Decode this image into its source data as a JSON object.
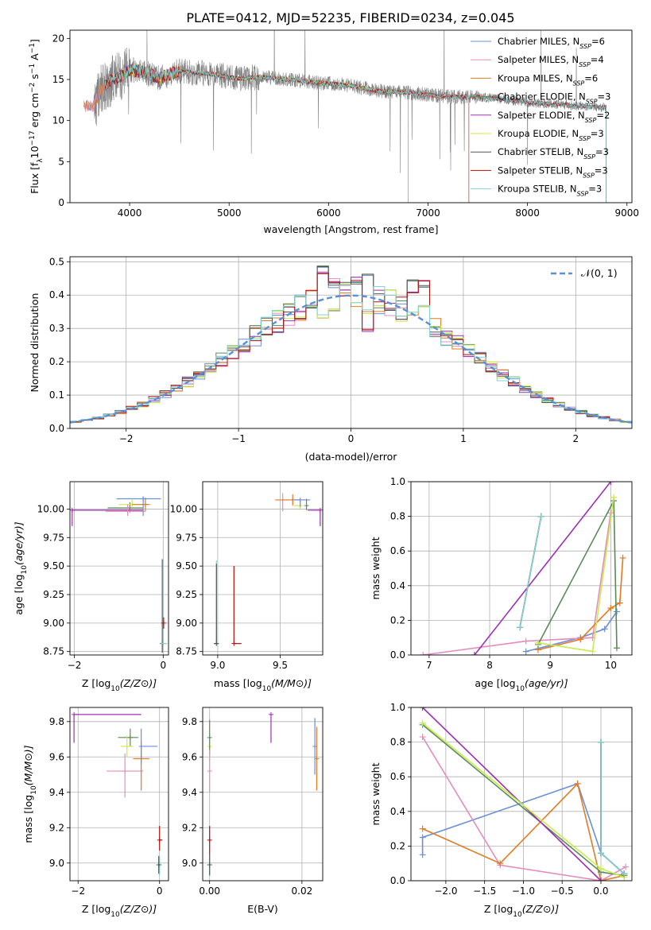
{
  "figure": {
    "title": "PLATE=0412, MJD=52235, FIBERID=0234, z=0.045"
  },
  "colors": {
    "chabrier_miles": "#6a8fd8",
    "salpeter_miles": "#e58cbf",
    "kroupa_miles": "#e07b22",
    "chabrier_elodie": "#5a8a5a",
    "salpeter_elodie": "#9b30b0",
    "kroupa_elodie": "#c8ec4a",
    "chabrier_stelib": "#555555",
    "salpeter_stelib": "#b01010",
    "kroupa_stelib": "#7fd6d6",
    "data": "#808080",
    "gauss": "#5b8fd6"
  },
  "chart_data": [
    {
      "id": "spectrum",
      "type": "line",
      "title": "PLATE=0412, MJD=52235, FIBERID=0234, z=0.045",
      "xlabel": "wavelength [Angstrom, rest frame]",
      "ylabel": "Flux [f_λ 10^-17 erg cm^-2 s^-1 A^-1]",
      "xlim": [
        3400,
        9050
      ],
      "ylim": [
        0,
        21
      ],
      "xticks": [
        "4000",
        "5000",
        "6000",
        "7000",
        "8000",
        "9000"
      ],
      "yticks": [
        "0",
        "5",
        "10",
        "15",
        "20"
      ],
      "legend_position": "top-right",
      "legend": [
        {
          "model": "Chabrier MILES",
          "n": "N",
          "sub": "SSP",
          "val": "=6"
        },
        {
          "model": "Salpeter MILES",
          "n": "N",
          "sub": "SSP",
          "val": "=4"
        },
        {
          "model": "Kroupa MILES",
          "n": "N",
          "sub": "SSP",
          "val": "=6"
        },
        {
          "model": "Chabrier ELODIE",
          "n": "N",
          "sub": "SSP",
          "val": "=3"
        },
        {
          "model": "Salpeter ELODIE",
          "n": "N",
          "sub": "SSP",
          "val": "=2"
        },
        {
          "model": "Kroupa ELODIE",
          "n": "N",
          "sub": "SSP",
          "val": "=3"
        },
        {
          "model": "Chabrier STELIB",
          "n": "N",
          "sub": "SSP",
          "val": "=3"
        },
        {
          "model": "Salpeter STELIB",
          "n": "N",
          "sub": "SSP",
          "val": "=3"
        },
        {
          "model": "Kroupa STELIB",
          "n": "N",
          "sub": "SSP",
          "val": "=3"
        }
      ],
      "continuum_knots": [
        [
          3640,
          11.8
        ],
        [
          3700,
          13.5
        ],
        [
          3800,
          14.8
        ],
        [
          3900,
          15.3
        ],
        [
          4000,
          16.2
        ],
        [
          4100,
          16.0
        ],
        [
          4300,
          15.2
        ],
        [
          4500,
          16.0
        ],
        [
          4800,
          15.7
        ],
        [
          5100,
          15.1
        ],
        [
          5300,
          15.3
        ],
        [
          5600,
          15.0
        ],
        [
          5900,
          14.6
        ],
        [
          6200,
          14.3
        ],
        [
          6500,
          13.6
        ],
        [
          6800,
          13.4
        ],
        [
          7200,
          12.9
        ],
        [
          7500,
          12.9
        ],
        [
          7800,
          12.5
        ],
        [
          8100,
          12.1
        ],
        [
          8400,
          11.9
        ],
        [
          8790,
          11.6
        ]
      ],
      "models": {
        "miles": [
          3540,
          7410
        ],
        "elodie": [
          3890,
          6800
        ],
        "stelib": [
          3750,
          8790
        ]
      }
    },
    {
      "id": "residuals",
      "type": "histogram",
      "xlabel": "(data-model)/error",
      "ylabel": "Normed distribution",
      "xlim": [
        -2.5,
        2.5
      ],
      "ylim": [
        0,
        0.515
      ],
      "xticks": [
        "−2",
        "−1",
        "0",
        "1",
        "2"
      ],
      "yticks": [
        "0.0",
        "0.1",
        "0.2",
        "0.3",
        "0.4",
        "0.5"
      ],
      "legend_position": "top-right",
      "legend": {
        "gauss": "𝒩(0, 1)"
      },
      "bin_width": 0.1,
      "spikes": {
        "-0.25": [
          0.49,
          0.47,
          0.34
        ],
        "-0.15": [
          0.43,
          0.44,
          0.36
        ],
        "0.05": [
          0.44,
          0.45,
          0.37
        ],
        "0.15": [
          0.46,
          0.3,
          0.35
        ],
        "0.55": [
          0.45,
          0.41,
          0.35
        ],
        "0.65": [
          0.43,
          0.45,
          0.37
        ]
      }
    },
    {
      "id": "age_vs_Z",
      "type": "errorbar",
      "xlabel": "Z [log10(Z/Z⊙)]",
      "ylabel": "age  [log10(age/yr)]",
      "xlim": [
        -2.1,
        0.12
      ],
      "ylim": [
        8.72,
        10.24
      ],
      "xticks": [
        "−2",
        "0"
      ],
      "yticks": [
        "8.75",
        "9.00",
        "9.25",
        "9.50",
        "9.75",
        "10.00",
        "10.25"
      ],
      "points": [
        {
          "model": "salpeter_elodie",
          "x": -2.05,
          "y": 9.99,
          "xerr": [
            0.0,
            1.6
          ],
          "yerr": [
            0.14,
            0.0
          ]
        },
        {
          "model": "chabrier_elodie",
          "x": -0.75,
          "y": 10.01,
          "xerr": [
            0.5,
            0.3
          ],
          "yerr": [
            0.04,
            0.05
          ]
        },
        {
          "model": "kroupa_elodie",
          "x": -0.7,
          "y": 10.04,
          "xerr": [
            0.3,
            0.3
          ],
          "yerr": [
            0.02,
            0.04
          ]
        },
        {
          "model": "salpeter_miles",
          "x": -0.8,
          "y": 9.98,
          "xerr": [
            0.5,
            0.4
          ],
          "yerr": [
            0.04,
            0.06
          ]
        },
        {
          "model": "kroupa_miles",
          "x": -0.4,
          "y": 10.04,
          "xerr": [
            0.3,
            0.1
          ],
          "yerr": [
            0.06,
            0.06
          ]
        },
        {
          "model": "chabrier_miles",
          "x": -0.45,
          "y": 10.09,
          "xerr": [
            0.6,
            0.4
          ],
          "yerr": [
            0.15,
            0.02
          ]
        },
        {
          "model": "chabrier_stelib",
          "x": -0.02,
          "y": 8.82,
          "xerr": [
            0.0,
            0.0
          ],
          "yerr": [
            0.08,
            0.74
          ]
        },
        {
          "model": "kroupa_stelib",
          "x": 0.0,
          "y": 8.82,
          "xerr": [
            0.0,
            0.09
          ],
          "yerr": [
            0.0,
            0.73
          ]
        },
        {
          "model": "salpeter_stelib",
          "x": 0.01,
          "y": 9.0,
          "xerr": [
            0.0,
            0.0
          ],
          "yerr": [
            0.05,
            0.05
          ]
        }
      ]
    },
    {
      "id": "age_vs_mass",
      "type": "errorbar",
      "xlabel": "mass [log10(M/M⊙)]",
      "ylabel": "",
      "xlim": [
        8.88,
        9.84
      ],
      "ylim": [
        8.72,
        10.24
      ],
      "xticks": [
        "9.0",
        "9.5"
      ],
      "yticks": [
        "8.75",
        "9.00",
        "9.25",
        "9.50",
        "9.75",
        "10.00",
        "10.25"
      ],
      "points": [
        {
          "model": "kroupa_stelib",
          "x": 8.99,
          "y": 8.82,
          "xerr": [
            0.0,
            0.02
          ],
          "yerr": [
            0.0,
            0.73
          ]
        },
        {
          "model": "chabrier_stelib",
          "x": 8.99,
          "y": 8.82,
          "xerr": [
            0.02,
            0.01
          ],
          "yerr": [
            0.0,
            0.7
          ]
        },
        {
          "model": "salpeter_stelib",
          "x": 9.13,
          "y": 8.82,
          "xerr": [
            0.0,
            0.06
          ],
          "yerr": [
            0.0,
            0.68
          ]
        },
        {
          "model": "salpeter_miles",
          "x": 9.52,
          "y": 10.08,
          "xerr": [
            0.0,
            0.2
          ],
          "yerr": [
            0.1,
            0.06
          ]
        },
        {
          "model": "kroupa_miles",
          "x": 9.6,
          "y": 10.08,
          "xerr": [
            0.14,
            0.06
          ],
          "yerr": [
            0.05,
            0.05
          ]
        },
        {
          "model": "kroupa_elodie",
          "x": 9.66,
          "y": 10.03,
          "xerr": [
            0.05,
            0.0
          ],
          "yerr": [
            0.04,
            0.04
          ]
        },
        {
          "model": "chabrier_elodie",
          "x": 9.71,
          "y": 10.03,
          "xerr": [
            0.0,
            0.0
          ],
          "yerr": [
            0.04,
            0.06
          ]
        },
        {
          "model": "chabrier_miles",
          "x": 9.66,
          "y": 10.08,
          "xerr": [
            0.06,
            0.08
          ],
          "yerr": [
            0.06,
            0.0
          ]
        },
        {
          "model": "salpeter_elodie",
          "x": 9.82,
          "y": 9.99,
          "xerr": [
            0.1,
            0.0
          ],
          "yerr": [
            0.14,
            0.0
          ]
        }
      ]
    },
    {
      "id": "weight_vs_age",
      "type": "line",
      "xlabel": "age  [log10(age/yr)]",
      "ylabel": "mass weight",
      "xlim": [
        6.7,
        10.35
      ],
      "ylim": [
        0,
        1
      ],
      "xticks": [
        "7",
        "8",
        "9",
        "10"
      ],
      "yticks": [
        "0.0",
        "0.2",
        "0.4",
        "0.6",
        "0.8",
        "1.0"
      ],
      "series": [
        {
          "model": "chabrier_miles",
          "x": [
            8.6,
            9.5,
            9.9,
            10.1
          ],
          "y": [
            0.02,
            0.1,
            0.15,
            0.25
          ]
        },
        {
          "model": "salpeter_miles",
          "x": [
            6.9,
            8.6,
            9.7,
            10.0
          ],
          "y": [
            0.0,
            0.08,
            0.1,
            0.82
          ]
        },
        {
          "model": "kroupa_miles",
          "x": [
            8.8,
            9.5,
            10.0,
            10.15,
            10.2
          ],
          "y": [
            0.03,
            0.09,
            0.27,
            0.3,
            0.56
          ]
        },
        {
          "model": "chabrier_elodie",
          "x": [
            8.8,
            10.05,
            10.1
          ],
          "y": [
            0.06,
            0.89,
            0.04
          ]
        },
        {
          "model": "salpeter_elodie",
          "x": [
            7.75,
            10.0
          ],
          "y": [
            0.0,
            1.0
          ]
        },
        {
          "model": "kroupa_elodie",
          "x": [
            8.8,
            9.7,
            10.05
          ],
          "y": [
            0.07,
            0.02,
            0.91
          ]
        },
        {
          "model": "chabrier_stelib",
          "x": [
            8.5,
            8.85
          ],
          "y": [
            0.16,
            0.8
          ]
        },
        {
          "model": "salpeter_stelib",
          "x": [
            8.5,
            8.85
          ],
          "y": [
            0.16,
            0.8
          ]
        },
        {
          "model": "kroupa_stelib",
          "x": [
            8.5,
            8.85
          ],
          "y": [
            0.16,
            0.8
          ]
        }
      ]
    },
    {
      "id": "mass_vs_Z",
      "type": "errorbar",
      "xlabel": "Z [log10(Z/Z⊙)]",
      "ylabel": "mass [log10(M/M⊙)]",
      "xlim": [
        -2.2,
        0.22
      ],
      "ylim": [
        8.9,
        9.88
      ],
      "xticks": [
        "−2",
        "0"
      ],
      "yticks": [
        "9.0",
        "9.2",
        "9.4",
        "9.6",
        "9.8"
      ],
      "points": [
        {
          "model": "salpeter_elodie",
          "x": -2.1,
          "y": 9.84,
          "xerr": [
            0.0,
            1.65
          ],
          "yerr": [
            0.16,
            0.0
          ]
        },
        {
          "model": "chabrier_elodie",
          "x": -0.72,
          "y": 9.71,
          "xerr": [
            0.3,
            0.2
          ],
          "yerr": [
            0.05,
            0.05
          ]
        },
        {
          "model": "kroupa_elodie",
          "x": -0.8,
          "y": 9.66,
          "xerr": [
            0.15,
            0.15
          ],
          "yerr": [
            0.06,
            0.06
          ]
        },
        {
          "model": "salpeter_miles",
          "x": -0.85,
          "y": 9.52,
          "xerr": [
            0.45,
            0.45
          ],
          "yerr": [
            0.15,
            0.1
          ]
        },
        {
          "model": "kroupa_miles",
          "x": -0.45,
          "y": 9.59,
          "xerr": [
            0.2,
            0.2
          ],
          "yerr": [
            0.18,
            0.1
          ]
        },
        {
          "model": "chabrier_miles",
          "x": -0.45,
          "y": 9.66,
          "xerr": [
            0.0,
            0.4
          ],
          "yerr": [
            0.1,
            0.1
          ]
        },
        {
          "model": "salpeter_stelib",
          "x": 0.0,
          "y": 9.13,
          "xerr": [
            0.0,
            0.07
          ],
          "yerr": [
            0.06,
            0.08
          ]
        },
        {
          "model": "kroupa_stelib",
          "x": 0.0,
          "y": 8.99,
          "xerr": [
            0.0,
            0.05
          ],
          "yerr": [
            0.06,
            0.04
          ]
        },
        {
          "model": "chabrier_stelib",
          "x": -0.02,
          "y": 8.99,
          "xerr": [
            0.02,
            0.02
          ],
          "yerr": [
            0.05,
            0.05
          ]
        }
      ]
    },
    {
      "id": "mass_vs_ebv",
      "type": "errorbar",
      "xlabel": "E(B-V)",
      "ylabel": "",
      "xlim": [
        -0.0015,
        0.0245
      ],
      "ylim": [
        8.9,
        9.88
      ],
      "xticks": [
        "0.00",
        "0.02"
      ],
      "yticks": [
        "9.0",
        "9.2",
        "9.4",
        "9.6",
        "9.8"
      ],
      "points": [
        {
          "model": "salpeter_elodie",
          "x": 0.0133,
          "y": 9.84,
          "xerr": [
            0.0,
            0.0
          ],
          "yerr": [
            0.16,
            0.0
          ]
        },
        {
          "model": "chabrier_miles",
          "x": 0.0228,
          "y": 9.66,
          "xerr": [
            0.0,
            0.0
          ],
          "yerr": [
            0.16,
            0.16
          ]
        },
        {
          "model": "kroupa_miles",
          "x": 0.0232,
          "y": 9.59,
          "xerr": [
            0.0,
            0.0
          ],
          "yerr": [
            0.18,
            0.18
          ]
        },
        {
          "model": "salpeter_stelib",
          "x": 0.0,
          "y": 9.13,
          "xerr": [
            0.0,
            0.0
          ],
          "yerr": [
            0.08,
            0.08
          ]
        },
        {
          "model": "kroupa_stelib",
          "x": 0.0,
          "y": 8.99,
          "xerr": [
            0.0,
            0.0
          ],
          "yerr": [
            0.06,
            0.06
          ]
        },
        {
          "model": "chabrier_stelib",
          "x": 0.0,
          "y": 8.99,
          "xerr": [
            0.0,
            0.0
          ],
          "yerr": [
            0.06,
            0.06
          ]
        },
        {
          "model": "kroupa_elodie",
          "x": 0.0,
          "y": 9.66,
          "xerr": [
            0.0,
            0.0
          ],
          "yerr": [
            0.08,
            0.08
          ]
        },
        {
          "model": "chabrier_elodie",
          "x": 0.0,
          "y": 9.71,
          "xerr": [
            0.0,
            0.0
          ],
          "yerr": [
            0.1,
            0.1
          ]
        },
        {
          "model": "salpeter_miles",
          "x": 0.0,
          "y": 9.52,
          "xerr": [
            0.0,
            0.0
          ],
          "yerr": [
            0.12,
            0.12
          ]
        }
      ]
    },
    {
      "id": "weight_vs_Z",
      "type": "line",
      "xlabel": "Z [log10(Z/Z⊙)]",
      "ylabel": "mass weight",
      "xlim": [
        -2.45,
        0.4
      ],
      "ylim": [
        0,
        1
      ],
      "xticks": [
        "−2.0",
        "−1.5",
        "−1.0",
        "−0.5",
        "0.0"
      ],
      "yticks": [
        "0.0",
        "0.2",
        "0.4",
        "0.6",
        "0.8",
        "1.0"
      ],
      "series": [
        {
          "model": "chabrier_miles",
          "x": [
            -2.3,
            -2.3,
            -0.3,
            0.0,
            0.3
          ],
          "y": [
            0.15,
            0.25,
            0.56,
            0.16,
            0.04
          ]
        },
        {
          "model": "salpeter_miles",
          "x": [
            -2.3,
            -1.3,
            0.0,
            0.32
          ],
          "y": [
            0.83,
            0.09,
            0.0,
            0.08
          ]
        },
        {
          "model": "kroupa_miles",
          "x": [
            -2.3,
            -1.3,
            -0.3,
            0.0,
            0.3
          ],
          "y": [
            0.3,
            0.1,
            0.56,
            0.0,
            0.03
          ]
        },
        {
          "model": "chabrier_elodie",
          "x": [
            -2.3,
            0.0,
            0.3
          ],
          "y": [
            0.9,
            0.05,
            0.03
          ]
        },
        {
          "model": "salpeter_elodie",
          "x": [
            -2.3,
            0.0
          ],
          "y": [
            1.0,
            0.0
          ]
        },
        {
          "model": "kroupa_elodie",
          "x": [
            -2.3,
            0.0,
            0.3
          ],
          "y": [
            0.91,
            0.07,
            0.02
          ]
        },
        {
          "model": "chabrier_stelib",
          "x": [
            0.0,
            0.0,
            0.3
          ],
          "y": [
            0.8,
            0.16,
            0.04
          ]
        },
        {
          "model": "salpeter_stelib",
          "x": [
            0.0,
            0.0,
            0.3
          ],
          "y": [
            0.8,
            0.16,
            0.04
          ]
        },
        {
          "model": "kroupa_stelib",
          "x": [
            0.0,
            0.0,
            0.3
          ],
          "y": [
            0.8,
            0.16,
            0.04
          ]
        }
      ]
    }
  ]
}
